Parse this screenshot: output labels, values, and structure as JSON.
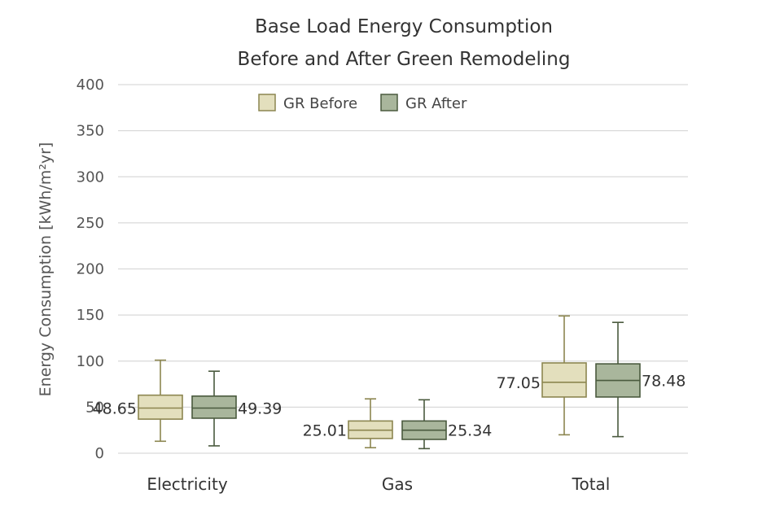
{
  "chart_data": {
    "type": "boxplot",
    "title": "Base Load Energy Consumption",
    "subtitle": "Before and After Green Remodeling",
    "xlabel": "",
    "ylabel": "Energy Consumption [kWh/m²yr]",
    "ylim": [
      0,
      400
    ],
    "yticks": [
      "0",
      "50",
      "100",
      "150",
      "200",
      "250",
      "300",
      "350",
      "400"
    ],
    "grid": true,
    "legend_position": "top-center",
    "categories": [
      "Electricity",
      "Gas",
      "Total"
    ],
    "series": [
      {
        "name": "GR Before",
        "color": "#e3dfbd",
        "edge": "#8c8650",
        "boxes": [
          {
            "whisker_low": 13,
            "q1": 37,
            "median": 49,
            "q3": 63,
            "whisker_high": 101,
            "label": "48.65"
          },
          {
            "whisker_low": 6,
            "q1": 16,
            "median": 25,
            "q3": 35,
            "whisker_high": 59,
            "label": "25.01"
          },
          {
            "whisker_low": 20,
            "q1": 61,
            "median": 77,
            "q3": 98,
            "whisker_high": 149,
            "label": "77.05"
          }
        ]
      },
      {
        "name": "GR After",
        "color": "#a9b69c",
        "edge": "#4a5a3e",
        "boxes": [
          {
            "whisker_low": 8,
            "q1": 38,
            "median": 49,
            "q3": 62,
            "whisker_high": 89,
            "label": "49.39"
          },
          {
            "whisker_low": 5,
            "q1": 15,
            "median": 25,
            "q3": 35,
            "whisker_high": 58,
            "label": "25.34"
          },
          {
            "whisker_low": 18,
            "q1": 61,
            "median": 79,
            "q3": 97,
            "whisker_high": 142,
            "label": "78.48"
          }
        ]
      }
    ]
  }
}
